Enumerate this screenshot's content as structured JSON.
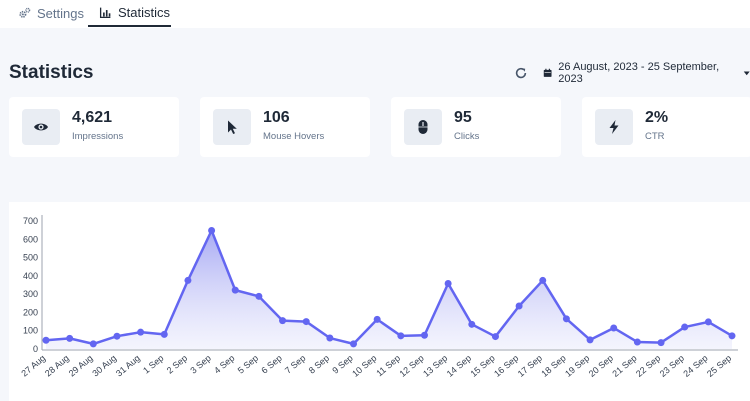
{
  "tabs": [
    {
      "label": "Settings",
      "icon": "gears-icon",
      "active": false
    },
    {
      "label": "Statistics",
      "icon": "bar-chart-icon",
      "active": true
    }
  ],
  "page": {
    "title": "Statistics",
    "date_range": "26 August, 2023 - 25 September, 2023"
  },
  "stats": [
    {
      "value": "4,621",
      "label": "Impressions",
      "icon": "eye-icon"
    },
    {
      "value": "106",
      "label": "Mouse Hovers",
      "icon": "pointer-icon"
    },
    {
      "value": "95",
      "label": "Clicks",
      "icon": "mouse-icon"
    },
    {
      "value": "2%",
      "label": "CTR",
      "icon": "bolt-icon"
    }
  ],
  "colors": {
    "accent": "#6366f1",
    "area": "#c7c9f7"
  },
  "chart_data": {
    "type": "area",
    "x": [
      "27 Aug",
      "28 Aug",
      "29 Aug",
      "30 Aug",
      "31 Aug",
      "1 Sep",
      "2 Sep",
      "3 Sep",
      "4 Sep",
      "5 Sep",
      "6 Sep",
      "7 Sep",
      "8 Sep",
      "9 Sep",
      "10 Sep",
      "11 Sep",
      "12 Sep",
      "13 Sep",
      "14 Sep",
      "15 Sep",
      "16 Sep",
      "17 Sep",
      "18 Sep",
      "19 Sep",
      "20 Sep",
      "21 Sep",
      "22 Sep",
      "23 Sep",
      "24 Sep",
      "25 Sep"
    ],
    "values": [
      48,
      58,
      28,
      70,
      92,
      80,
      375,
      648,
      322,
      288,
      155,
      150,
      60,
      28,
      162,
      72,
      75,
      358,
      135,
      68,
      235,
      375,
      165,
      50,
      115,
      38,
      35,
      120,
      148,
      72
    ],
    "ylim": [
      0,
      700
    ],
    "yticks": [
      0,
      100,
      200,
      300,
      400,
      500,
      600,
      700
    ],
    "grid": false
  }
}
